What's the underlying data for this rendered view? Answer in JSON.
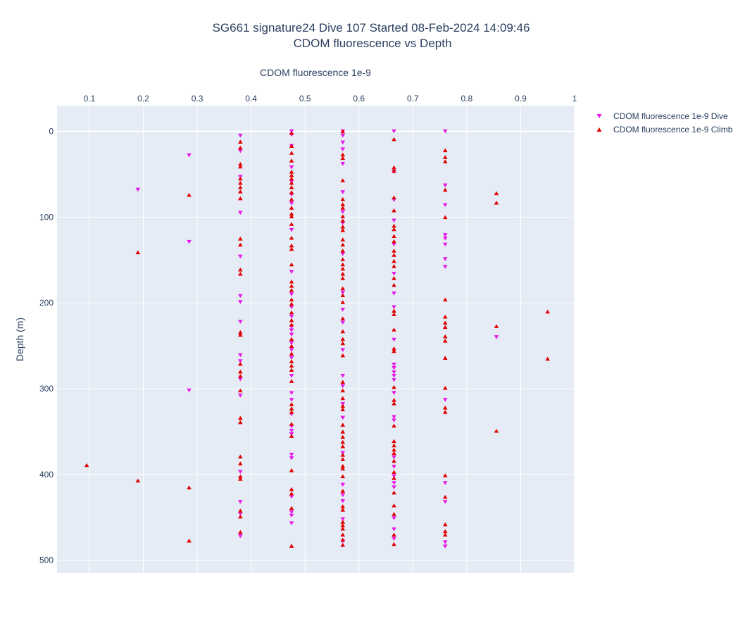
{
  "chart_data": {
    "type": "scatter",
    "title_line1": "SG661 signature24 Dive 107 Started 08-Feb-2024 14:09:46",
    "title_line2": "CDOM fluorescence vs Depth",
    "xlabel": "CDOM fluorescence 1e-9",
    "ylabel": "Depth (m)",
    "x_axis_position": "top",
    "y_reversed": true,
    "xlim": [
      0.04,
      1.0
    ],
    "ylim": [
      -30,
      515
    ],
    "x_ticks": [
      0.1,
      0.2,
      0.3,
      0.4,
      0.5,
      0.6,
      0.7,
      0.8,
      0.9,
      1
    ],
    "x_tick_labels": [
      "0.1",
      "0.2",
      "0.3",
      "0.4",
      "0.5",
      "0.6",
      "0.7",
      "0.8",
      "0.9",
      "1"
    ],
    "y_ticks": [
      0,
      100,
      200,
      300,
      400,
      500
    ],
    "y_tick_labels": [
      "0",
      "100",
      "200",
      "300",
      "400",
      "500"
    ],
    "grid": true,
    "legend_position": "top-right",
    "background": "#e5ecf6",
    "series": [
      {
        "name": "CDOM fluorescence 1e-9 Dive",
        "marker": "triangle-down",
        "color": "#e619e6",
        "points": [
          [
            0.285,
            28
          ],
          [
            0.19,
            68
          ],
          [
            0.285,
            129
          ],
          [
            0.285,
            302
          ],
          [
            0.38,
            5
          ],
          [
            0.38,
            23
          ],
          [
            0.38,
            53
          ],
          [
            0.38,
            95
          ],
          [
            0.38,
            146
          ],
          [
            0.38,
            192
          ],
          [
            0.38,
            199
          ],
          [
            0.38,
            222
          ],
          [
            0.38,
            261
          ],
          [
            0.38,
            268
          ],
          [
            0.38,
            289
          ],
          [
            0.38,
            308
          ],
          [
            0.38,
            397
          ],
          [
            0.38,
            432
          ],
          [
            0.38,
            446
          ],
          [
            0.38,
            472
          ],
          [
            0.475,
            0
          ],
          [
            0.475,
            4
          ],
          [
            0.475,
            17
          ],
          [
            0.475,
            42
          ],
          [
            0.475,
            59
          ],
          [
            0.475,
            74
          ],
          [
            0.475,
            84
          ],
          [
            0.475,
            115
          ],
          [
            0.475,
            164
          ],
          [
            0.475,
            190
          ],
          [
            0.475,
            205
          ],
          [
            0.475,
            216
          ],
          [
            0.475,
            228
          ],
          [
            0.475,
            232
          ],
          [
            0.475,
            237
          ],
          [
            0.475,
            247
          ],
          [
            0.475,
            255
          ],
          [
            0.475,
            264
          ],
          [
            0.475,
            285
          ],
          [
            0.475,
            305
          ],
          [
            0.475,
            313
          ],
          [
            0.475,
            330
          ],
          [
            0.475,
            344
          ],
          [
            0.475,
            349
          ],
          [
            0.475,
            353
          ],
          [
            0.475,
            377
          ],
          [
            0.475,
            381
          ],
          [
            0.475,
            426
          ],
          [
            0.475,
            444
          ],
          [
            0.475,
            448
          ],
          [
            0.475,
            457
          ],
          [
            0.57,
            0
          ],
          [
            0.57,
            5
          ],
          [
            0.57,
            13
          ],
          [
            0.57,
            21
          ],
          [
            0.57,
            38
          ],
          [
            0.57,
            71
          ],
          [
            0.57,
            94
          ],
          [
            0.57,
            107
          ],
          [
            0.57,
            143
          ],
          [
            0.57,
            188
          ],
          [
            0.57,
            208
          ],
          [
            0.57,
            223
          ],
          [
            0.57,
            255
          ],
          [
            0.57,
            285
          ],
          [
            0.57,
            297
          ],
          [
            0.57,
            318
          ],
          [
            0.57,
            334
          ],
          [
            0.57,
            375
          ],
          [
            0.57,
            412
          ],
          [
            0.57,
            424
          ],
          [
            0.57,
            431
          ],
          [
            0.57,
            452
          ],
          [
            0.57,
            478
          ],
          [
            0.665,
            0
          ],
          [
            0.665,
            47
          ],
          [
            0.665,
            80
          ],
          [
            0.665,
            104
          ],
          [
            0.665,
            132
          ],
          [
            0.665,
            166
          ],
          [
            0.665,
            189
          ],
          [
            0.665,
            205
          ],
          [
            0.665,
            243
          ],
          [
            0.665,
            272
          ],
          [
            0.665,
            276
          ],
          [
            0.665,
            281
          ],
          [
            0.665,
            285
          ],
          [
            0.665,
            290
          ],
          [
            0.665,
            305
          ],
          [
            0.665,
            333
          ],
          [
            0.665,
            337
          ],
          [
            0.665,
            380
          ],
          [
            0.665,
            391
          ],
          [
            0.665,
            402
          ],
          [
            0.665,
            410
          ],
          [
            0.665,
            415
          ],
          [
            0.665,
            451
          ],
          [
            0.665,
            464
          ],
          [
            0.665,
            475
          ],
          [
            0.76,
            0
          ],
          [
            0.76,
            63
          ],
          [
            0.76,
            86
          ],
          [
            0.76,
            121
          ],
          [
            0.76,
            125
          ],
          [
            0.76,
            132
          ],
          [
            0.76,
            149
          ],
          [
            0.76,
            158
          ],
          [
            0.76,
            313
          ],
          [
            0.76,
            410
          ],
          [
            0.76,
            432
          ],
          [
            0.76,
            479
          ],
          [
            0.76,
            484
          ],
          [
            0.855,
            240
          ]
        ]
      },
      {
        "name": "CDOM fluorescence 1e-9 Climb",
        "marker": "triangle-up",
        "color": "#e00000",
        "points": [
          [
            0.095,
            389
          ],
          [
            0.19,
            141
          ],
          [
            0.19,
            407
          ],
          [
            0.285,
            74
          ],
          [
            0.285,
            415
          ],
          [
            0.285,
            477
          ],
          [
            0.38,
            12
          ],
          [
            0.38,
            19
          ],
          [
            0.38,
            38
          ],
          [
            0.38,
            41
          ],
          [
            0.38,
            55
          ],
          [
            0.38,
            60
          ],
          [
            0.38,
            65
          ],
          [
            0.38,
            70
          ],
          [
            0.38,
            78
          ],
          [
            0.38,
            125
          ],
          [
            0.38,
            132
          ],
          [
            0.38,
            161
          ],
          [
            0.38,
            166
          ],
          [
            0.38,
            234
          ],
          [
            0.38,
            237
          ],
          [
            0.38,
            271
          ],
          [
            0.38,
            280
          ],
          [
            0.38,
            285
          ],
          [
            0.38,
            302
          ],
          [
            0.38,
            334
          ],
          [
            0.38,
            339
          ],
          [
            0.38,
            379
          ],
          [
            0.38,
            387
          ],
          [
            0.38,
            402
          ],
          [
            0.38,
            405
          ],
          [
            0.38,
            442
          ],
          [
            0.38,
            449
          ],
          [
            0.38,
            467
          ],
          [
            0.475,
            2
          ],
          [
            0.475,
            17
          ],
          [
            0.475,
            25
          ],
          [
            0.475,
            34
          ],
          [
            0.475,
            47
          ],
          [
            0.475,
            51
          ],
          [
            0.475,
            55
          ],
          [
            0.475,
            60
          ],
          [
            0.475,
            65
          ],
          [
            0.475,
            71
          ],
          [
            0.475,
            79
          ],
          [
            0.475,
            89
          ],
          [
            0.475,
            96
          ],
          [
            0.475,
            99
          ],
          [
            0.475,
            108
          ],
          [
            0.475,
            124
          ],
          [
            0.475,
            133
          ],
          [
            0.475,
            137
          ],
          [
            0.475,
            155
          ],
          [
            0.475,
            175
          ],
          [
            0.475,
            180
          ],
          [
            0.475,
            185
          ],
          [
            0.475,
            196
          ],
          [
            0.475,
            201
          ],
          [
            0.475,
            211
          ],
          [
            0.475,
            220
          ],
          [
            0.475,
            225
          ],
          [
            0.475,
            242
          ],
          [
            0.475,
            250
          ],
          [
            0.475,
            259
          ],
          [
            0.475,
            268
          ],
          [
            0.475,
            273
          ],
          [
            0.475,
            278
          ],
          [
            0.475,
            291
          ],
          [
            0.475,
            318
          ],
          [
            0.475,
            323
          ],
          [
            0.475,
            327
          ],
          [
            0.475,
            341
          ],
          [
            0.475,
            355
          ],
          [
            0.475,
            395
          ],
          [
            0.475,
            417
          ],
          [
            0.475,
            422
          ],
          [
            0.475,
            439
          ],
          [
            0.475,
            483
          ],
          [
            0.57,
            0
          ],
          [
            0.57,
            27
          ],
          [
            0.57,
            31
          ],
          [
            0.57,
            57
          ],
          [
            0.57,
            79
          ],
          [
            0.57,
            85
          ],
          [
            0.57,
            89
          ],
          [
            0.57,
            99
          ],
          [
            0.57,
            104
          ],
          [
            0.57,
            111
          ],
          [
            0.57,
            115
          ],
          [
            0.57,
            126
          ],
          [
            0.57,
            132
          ],
          [
            0.57,
            139
          ],
          [
            0.57,
            149
          ],
          [
            0.57,
            155
          ],
          [
            0.57,
            160
          ],
          [
            0.57,
            166
          ],
          [
            0.57,
            171
          ],
          [
            0.57,
            183
          ],
          [
            0.57,
            191
          ],
          [
            0.57,
            199
          ],
          [
            0.57,
            218
          ],
          [
            0.57,
            233
          ],
          [
            0.57,
            242
          ],
          [
            0.57,
            247
          ],
          [
            0.57,
            261
          ],
          [
            0.57,
            292
          ],
          [
            0.57,
            302
          ],
          [
            0.57,
            311
          ],
          [
            0.57,
            320
          ],
          [
            0.57,
            324
          ],
          [
            0.57,
            342
          ],
          [
            0.57,
            350
          ],
          [
            0.57,
            356
          ],
          [
            0.57,
            362
          ],
          [
            0.57,
            367
          ],
          [
            0.57,
            377
          ],
          [
            0.57,
            382
          ],
          [
            0.57,
            390
          ],
          [
            0.57,
            393
          ],
          [
            0.57,
            402
          ],
          [
            0.57,
            419
          ],
          [
            0.57,
            437
          ],
          [
            0.57,
            441
          ],
          [
            0.57,
            455
          ],
          [
            0.57,
            459
          ],
          [
            0.57,
            463
          ],
          [
            0.57,
            470
          ],
          [
            0.57,
            476
          ],
          [
            0.57,
            482
          ],
          [
            0.665,
            9
          ],
          [
            0.665,
            42
          ],
          [
            0.665,
            46
          ],
          [
            0.665,
            77
          ],
          [
            0.665,
            92
          ],
          [
            0.665,
            110
          ],
          [
            0.665,
            114
          ],
          [
            0.665,
            122
          ],
          [
            0.665,
            128
          ],
          [
            0.665,
            139
          ],
          [
            0.665,
            144
          ],
          [
            0.665,
            151
          ],
          [
            0.665,
            157
          ],
          [
            0.665,
            171
          ],
          [
            0.665,
            179
          ],
          [
            0.665,
            209
          ],
          [
            0.665,
            213
          ],
          [
            0.665,
            231
          ],
          [
            0.665,
            253
          ],
          [
            0.665,
            256
          ],
          [
            0.665,
            298
          ],
          [
            0.665,
            313
          ],
          [
            0.665,
            317
          ],
          [
            0.665,
            343
          ],
          [
            0.665,
            361
          ],
          [
            0.665,
            366
          ],
          [
            0.665,
            371
          ],
          [
            0.665,
            375
          ],
          [
            0.665,
            384
          ],
          [
            0.665,
            397
          ],
          [
            0.665,
            404
          ],
          [
            0.665,
            421
          ],
          [
            0.665,
            436
          ],
          [
            0.665,
            446
          ],
          [
            0.665,
            470
          ],
          [
            0.665,
            481
          ],
          [
            0.76,
            22
          ],
          [
            0.76,
            30
          ],
          [
            0.76,
            35
          ],
          [
            0.76,
            68
          ],
          [
            0.76,
            100
          ],
          [
            0.76,
            196
          ],
          [
            0.76,
            216
          ],
          [
            0.76,
            223
          ],
          [
            0.76,
            228
          ],
          [
            0.76,
            239
          ],
          [
            0.76,
            244
          ],
          [
            0.76,
            264
          ],
          [
            0.76,
            299
          ],
          [
            0.76,
            322
          ],
          [
            0.76,
            327
          ],
          [
            0.76,
            401
          ],
          [
            0.76,
            426
          ],
          [
            0.76,
            458
          ],
          [
            0.76,
            466
          ],
          [
            0.76,
            470
          ],
          [
            0.855,
            72
          ],
          [
            0.855,
            83
          ],
          [
            0.855,
            227
          ],
          [
            0.855,
            349
          ],
          [
            0.95,
            210
          ],
          [
            0.95,
            265
          ]
        ]
      }
    ]
  }
}
